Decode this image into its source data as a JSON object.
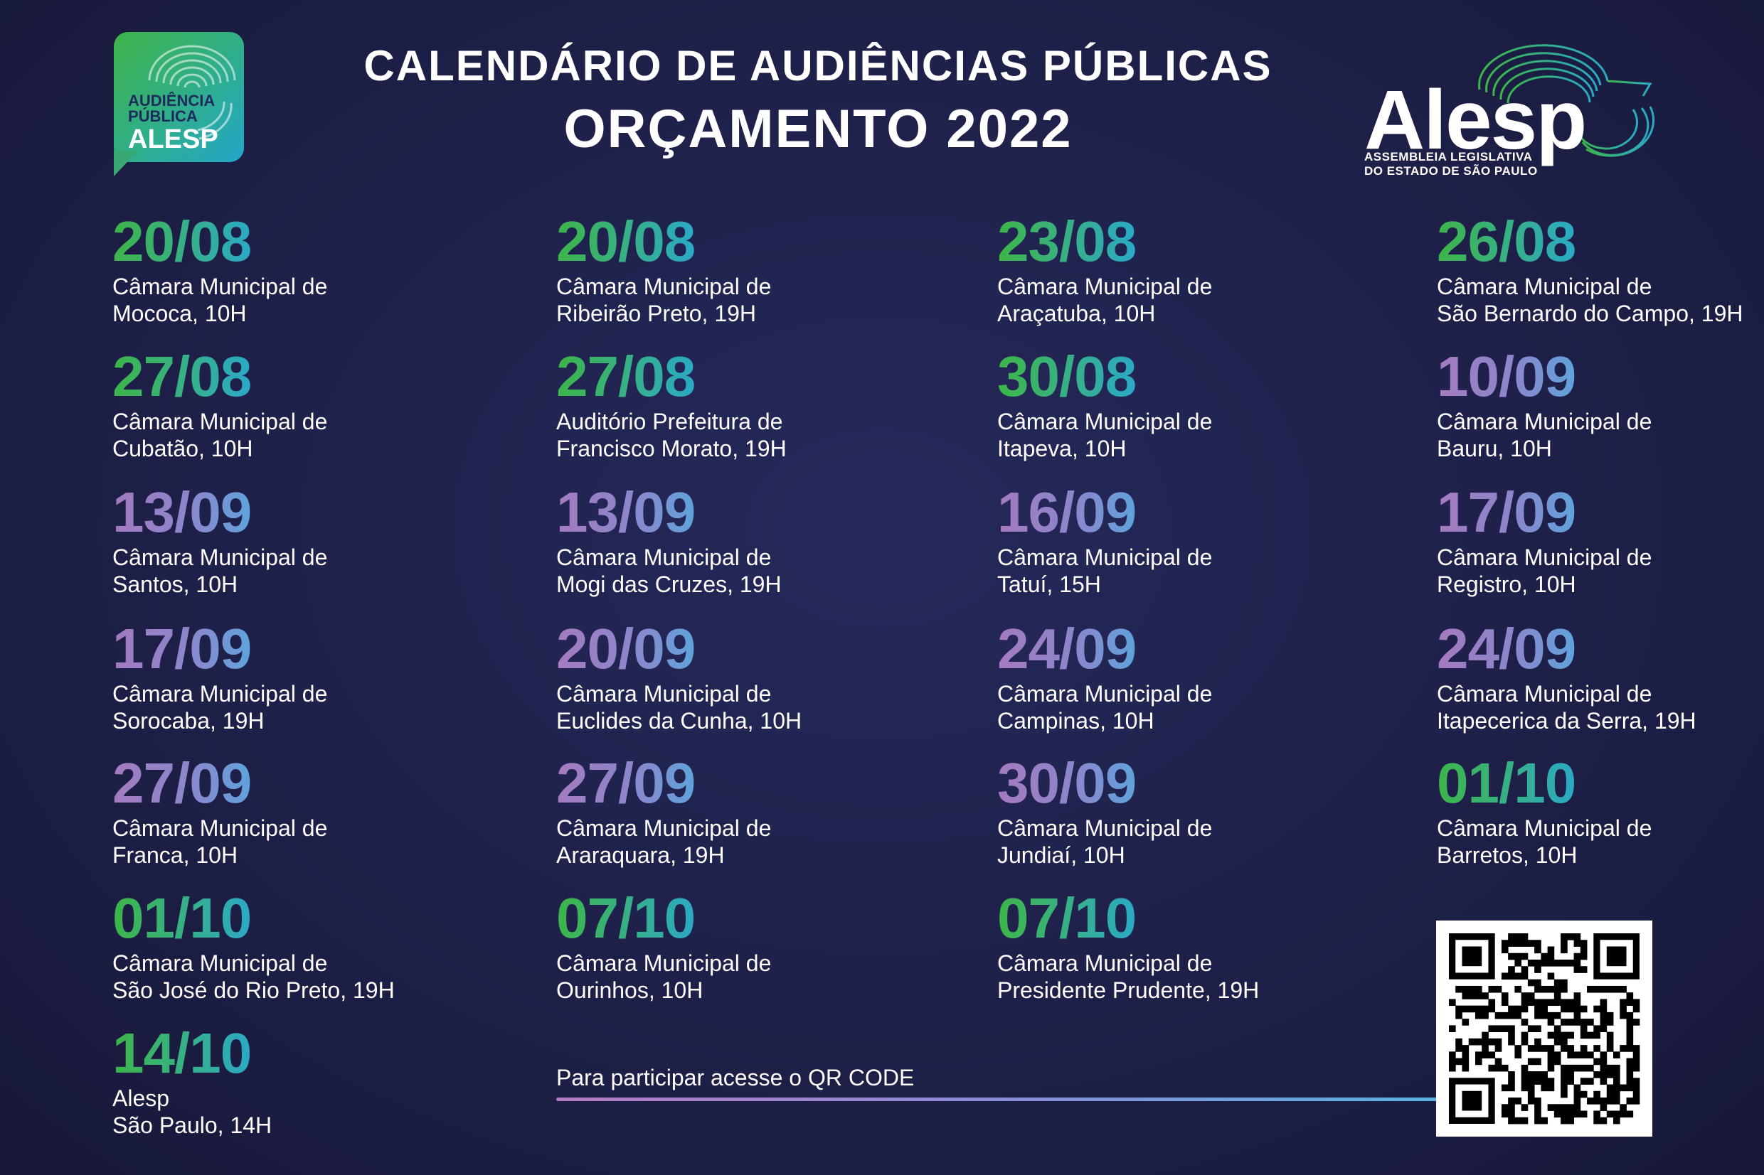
{
  "header": {
    "title_line1": "CALENDÁRIO DE AUDIÊNCIAS PÚBLICAS",
    "title_line2": "ORÇAMENTO 2022"
  },
  "badge_logo": {
    "line1": "AUDIÊNCIA",
    "line2": "PÚBLICA",
    "line3": "ALESP"
  },
  "alesp_logo": {
    "word": "Alesp",
    "sub1": "ASSEMBLEIA LEGISLATIVA",
    "sub2": "DO ESTADO DE SÃO PAULO"
  },
  "events": [
    {
      "date": "20/08",
      "line1": "Câmara Municipal de",
      "line2": "Mococa, 10H"
    },
    {
      "date": "20/08",
      "line1": "Câmara Municipal de",
      "line2": "Ribeirão Preto, 19H"
    },
    {
      "date": "23/08",
      "line1": "Câmara Municipal de",
      "line2": "Araçatuba, 10H"
    },
    {
      "date": "26/08",
      "line1": "Câmara Municipal de",
      "line2": "São Bernardo do Campo, 19H"
    },
    {
      "date": "27/08",
      "line1": "Câmara Municipal de",
      "line2": "Cubatão, 10H"
    },
    {
      "date": "27/08",
      "line1": "Auditório Prefeitura de",
      "line2": "Francisco Morato, 19H"
    },
    {
      "date": "30/08",
      "line1": "Câmara Municipal de",
      "line2": "Itapeva, 10H"
    },
    {
      "date": "10/09",
      "line1": "Câmara Municipal de",
      "line2": "Bauru, 10H"
    },
    {
      "date": "13/09",
      "line1": "Câmara Municipal de",
      "line2": "Santos, 10H"
    },
    {
      "date": "13/09",
      "line1": "Câmara Municipal de",
      "line2": "Mogi das Cruzes, 19H"
    },
    {
      "date": "16/09",
      "line1": "Câmara Municipal de",
      "line2": "Tatuí, 15H"
    },
    {
      "date": "17/09",
      "line1": "Câmara Municipal de",
      "line2": "Registro, 10H"
    },
    {
      "date": "17/09",
      "line1": "Câmara Municipal de",
      "line2": "Sorocaba, 19H"
    },
    {
      "date": "20/09",
      "line1": "Câmara Municipal de",
      "line2": "Euclides da Cunha, 10H"
    },
    {
      "date": "24/09",
      "line1": "Câmara Municipal de",
      "line2": "Campinas, 10H"
    },
    {
      "date": "24/09",
      "line1": "Câmara Municipal de",
      "line2": "Itapecerica da Serra, 19H"
    },
    {
      "date": "27/09",
      "line1": "Câmara Municipal de",
      "line2": "Franca, 10H"
    },
    {
      "date": "27/09",
      "line1": "Câmara Municipal de",
      "line2": "Araraquara, 19H"
    },
    {
      "date": "30/09",
      "line1": "Câmara Municipal de",
      "line2": "Jundiaí, 10H"
    },
    {
      "date": "01/10",
      "line1": "Câmara Municipal de",
      "line2": "Barretos, 10H"
    },
    {
      "date": "01/10",
      "line1": "Câmara Municipal de",
      "line2": "São José do Rio Preto, 19H"
    },
    {
      "date": "07/10",
      "line1": "Câmara Municipal de",
      "line2": "Ourinhos, 10H"
    },
    {
      "date": "07/10",
      "line1": "Câmara Municipal de",
      "line2": "Presidente Prudente, 19H"
    },
    {
      "date": "14/10",
      "line1": "Alesp",
      "line2": "São Paulo, 14H"
    }
  ],
  "cta": {
    "text": "Para participar acesse o QR CODE"
  },
  "colors": {
    "background": "#1e2049",
    "green_start": "#3db548",
    "green_end": "#2aa9c7",
    "purple_start": "#a47ac0",
    "purple_end": "#5fa3dc"
  }
}
